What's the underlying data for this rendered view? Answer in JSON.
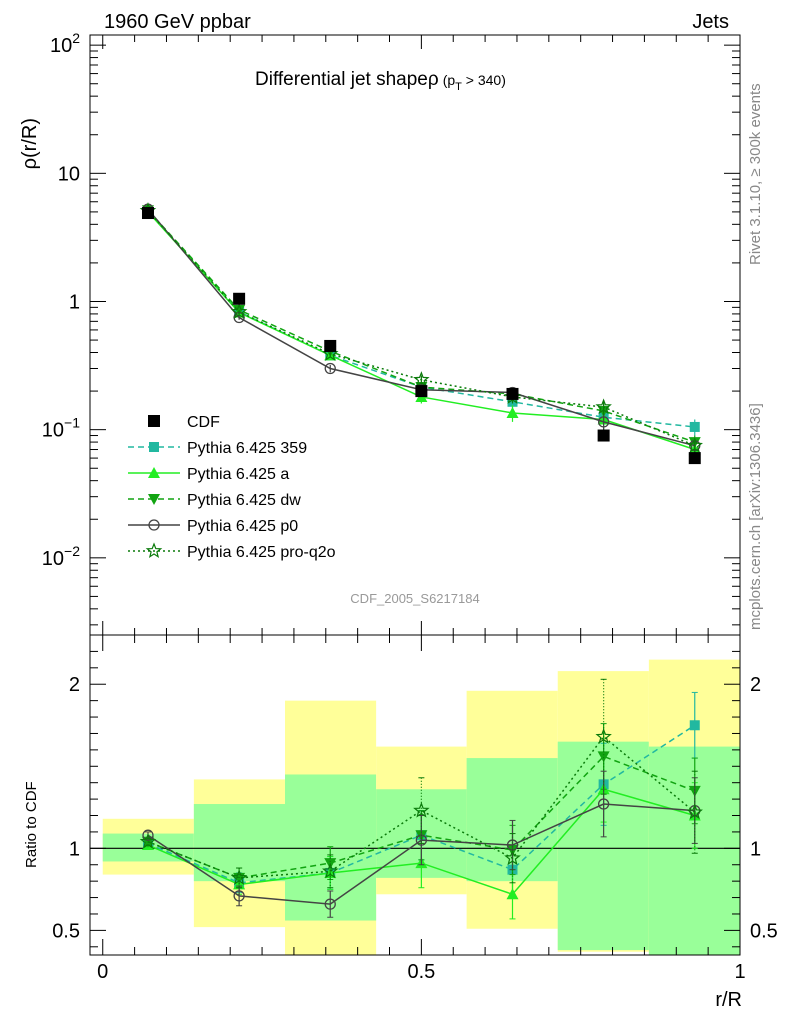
{
  "header": {
    "left": "1960 GeV ppbar",
    "right": "Jets"
  },
  "side_text": {
    "rivet": "Rivet 3.1.10, ≥ 300k events",
    "mcplots": "mcplots.cern.ch [arXiv:1306.3436]"
  },
  "watermark": "CDF_2005_S6217184",
  "colors": {
    "data": "#000000",
    "p359": "#22b8a0",
    "pa": "#22ee22",
    "pdw": "#11a411",
    "p0": "#444444",
    "pq2o": "#0a7a0a",
    "band_outer": "#ffff99",
    "band_inner": "#99ff99"
  },
  "chart_data": [
    {
      "type": "line",
      "title_main": "Differential jet shape",
      "title_rho": "ρ",
      "title_sub": "(p",
      "title_sub_index": "T",
      "title_sub_tail": " > 340)",
      "ylabel": "ρ(r/R)",
      "yscale": "log",
      "ylim": [
        0.0025,
        120
      ],
      "xlim": [
        -0.02,
        1.0
      ],
      "yticks": [
        {
          "v": 0.01,
          "base": "10",
          "exp": "−2"
        },
        {
          "v": 0.1,
          "base": "10",
          "exp": "−1"
        },
        {
          "v": 1,
          "base": "1",
          "exp": ""
        },
        {
          "v": 10,
          "base": "10",
          "exp": ""
        },
        {
          "v": 100,
          "base": "10",
          "exp": "2"
        }
      ],
      "x": [
        0.071,
        0.214,
        0.357,
        0.5,
        0.643,
        0.786,
        0.929
      ],
      "data": {
        "name": "CDF",
        "values": [
          4.9,
          1.05,
          0.45,
          0.2,
          0.19,
          0.09,
          0.06
        ]
      },
      "series": [
        {
          "key": "p359",
          "name": "Pythia 6.425 359",
          "marker": "square",
          "dash": "6,4",
          "values": [
            5.05,
            0.83,
            0.38,
            0.215,
            0.165,
            0.125,
            0.105
          ],
          "err": [
            0.1,
            0.03,
            0.02,
            0.015,
            0.02,
            0.02,
            0.015
          ]
        },
        {
          "key": "pa",
          "name": "Pythia 6.425 a",
          "marker": "triangle-up",
          "dash": "",
          "values": [
            5.0,
            0.82,
            0.38,
            0.18,
            0.135,
            0.12,
            0.07
          ],
          "err": [
            0.1,
            0.03,
            0.02,
            0.02,
            0.02,
            0.02,
            0.01
          ]
        },
        {
          "key": "pdw",
          "name": "Pythia 6.425 dw",
          "marker": "triangle-down",
          "dash": "6,4",
          "values": [
            5.15,
            0.86,
            0.41,
            0.215,
            0.19,
            0.14,
            0.08
          ],
          "err": [
            0.1,
            0.03,
            0.02,
            0.02,
            0.02,
            0.02,
            0.01
          ]
        },
        {
          "key": "p0",
          "name": "Pythia 6.425 p0",
          "marker": "circle-open",
          "dash": "",
          "values": [
            5.25,
            0.75,
            0.3,
            0.205,
            0.195,
            0.115,
            0.075
          ],
          "err": [
            0.1,
            0.03,
            0.02,
            0.015,
            0.02,
            0.015,
            0.01
          ]
        },
        {
          "key": "pq2o",
          "name": "Pythia 6.425 pro-q2o",
          "marker": "star",
          "dash": "2,3",
          "values": [
            5.1,
            0.83,
            0.39,
            0.245,
            0.18,
            0.15,
            0.075
          ],
          "err": [
            0.1,
            0.03,
            0.02,
            0.02,
            0.02,
            0.02,
            0.01
          ]
        }
      ]
    },
    {
      "type": "line",
      "ylabel": "Ratio to CDF",
      "xlabel": "r/R",
      "ylim": [
        0.35,
        2.3
      ],
      "xlim": [
        -0.02,
        1.0
      ],
      "xticks": [
        {
          "v": 0,
          "label": "0"
        },
        {
          "v": 0.5,
          "label": "0.5"
        },
        {
          "v": 1,
          "label": "1"
        }
      ],
      "yticks": [
        {
          "v": 0.5,
          "label": "0.5"
        },
        {
          "v": 1,
          "label": "1"
        },
        {
          "v": 2,
          "label": "2"
        }
      ],
      "bands": [
        {
          "x0": 0.0,
          "x1": 0.143,
          "outer": [
            0.84,
            1.18
          ],
          "inner": [
            0.92,
            1.09
          ]
        },
        {
          "x0": 0.143,
          "x1": 0.286,
          "outer": [
            0.52,
            1.42
          ],
          "inner": [
            0.8,
            1.27
          ]
        },
        {
          "x0": 0.286,
          "x1": 0.429,
          "outer": [
            0.3,
            1.9
          ],
          "inner": [
            0.56,
            1.45
          ]
        },
        {
          "x0": 0.429,
          "x1": 0.571,
          "outer": [
            0.72,
            1.62
          ],
          "inner": [
            0.82,
            1.36
          ]
        },
        {
          "x0": 0.571,
          "x1": 0.714,
          "outer": [
            0.51,
            1.96
          ],
          "inner": [
            0.8,
            1.55
          ]
        },
        {
          "x0": 0.714,
          "x1": 0.857,
          "outer": [
            0.37,
            2.08
          ],
          "inner": [
            0.38,
            1.65
          ]
        },
        {
          "x0": 0.857,
          "x1": 1.0,
          "outer": [
            0.35,
            2.15
          ],
          "inner": [
            0.35,
            1.62
          ]
        }
      ],
      "x": [
        0.071,
        0.214,
        0.357,
        0.5,
        0.643,
        0.786,
        0.929
      ],
      "series": [
        {
          "key": "p359",
          "values": [
            1.03,
            0.79,
            0.85,
            1.08,
            0.87,
            1.39,
            1.75
          ],
          "err": [
            0.02,
            0.06,
            0.1,
            0.15,
            0.15,
            0.25,
            0.2
          ]
        },
        {
          "key": "pa",
          "values": [
            1.02,
            0.78,
            0.85,
            0.91,
            0.72,
            1.36,
            1.2
          ],
          "err": [
            0.02,
            0.06,
            0.1,
            0.15,
            0.15,
            0.2,
            0.2
          ]
        },
        {
          "key": "pdw",
          "values": [
            1.04,
            0.82,
            0.91,
            1.08,
            0.99,
            1.56,
            1.35
          ],
          "err": [
            0.02,
            0.06,
            0.1,
            0.15,
            0.15,
            0.2,
            0.2
          ]
        },
        {
          "key": "p0",
          "values": [
            1.08,
            0.71,
            0.66,
            1.05,
            1.02,
            1.27,
            1.23
          ],
          "err": [
            0.02,
            0.06,
            0.08,
            0.15,
            0.15,
            0.2,
            0.2
          ]
        },
        {
          "key": "pq2o",
          "values": [
            1.04,
            0.82,
            0.86,
            1.23,
            0.94,
            1.68,
            1.22
          ],
          "err": [
            0.02,
            0.06,
            0.1,
            0.2,
            0.15,
            0.35,
            0.25
          ]
        }
      ]
    }
  ]
}
